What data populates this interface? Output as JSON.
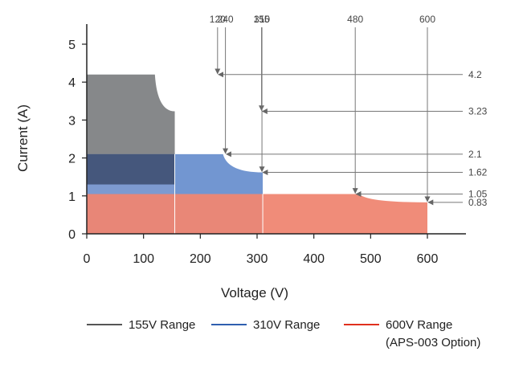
{
  "chart_data": {
    "type": "area",
    "xlabel": "Voltage (V)",
    "ylabel": "Current (A)",
    "xlim": [
      0,
      600
    ],
    "ylim": [
      0,
      5
    ],
    "x_ticks": [
      0,
      100,
      200,
      300,
      400,
      500,
      600
    ],
    "y_ticks": [
      0,
      1,
      2,
      3,
      4,
      5
    ],
    "grid": false,
    "legend_position": "bottom",
    "series": [
      {
        "name": "155V Range",
        "color": "#555555",
        "fill": "#808284",
        "points": [
          [
            0,
            4.2
          ],
          [
            120,
            4.2
          ],
          [
            155,
            3.23
          ],
          [
            155,
            0
          ]
        ]
      },
      {
        "name": "310V Range",
        "color": "#2f5fb0",
        "fill": "#6a90cf",
        "points": [
          [
            0,
            2.1
          ],
          [
            240,
            2.1
          ],
          [
            310,
            1.62
          ],
          [
            310,
            0
          ]
        ]
      },
      {
        "name": "600V Range",
        "note": "(APS-003 Option)",
        "color": "#e0301e",
        "fill": "#ef8672",
        "points": [
          [
            0,
            1.05
          ],
          [
            480,
            1.05
          ],
          [
            600,
            0.83
          ],
          [
            600,
            0
          ]
        ]
      }
    ],
    "top_annotations": [
      "120",
      "155",
      "240",
      "310",
      "480",
      "600"
    ],
    "right_annotations": [
      "4.2",
      "3.23",
      "2.1",
      "1.62",
      "1.05",
      "0.83"
    ]
  }
}
